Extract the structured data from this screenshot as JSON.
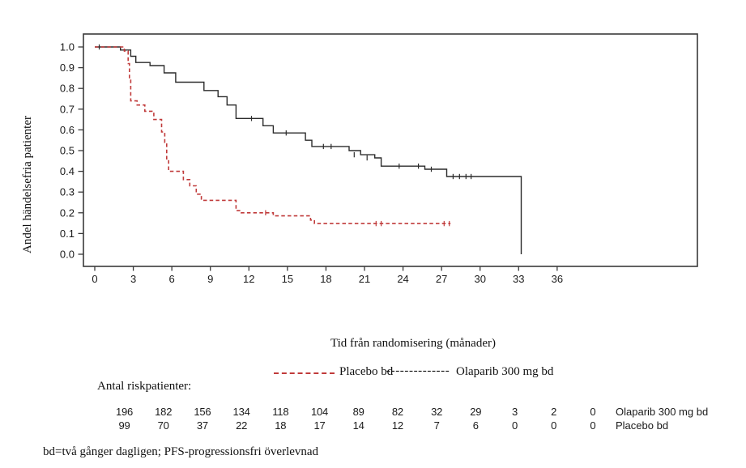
{
  "chart_data": {
    "type": "line",
    "subtype": "kaplan-meier-step",
    "xlabel": "Tid från randomisering (månader)",
    "ylabel": "Andel händelsefria patienter",
    "x_ticks": [
      0,
      3,
      6,
      9,
      12,
      15,
      18,
      21,
      24,
      27,
      30,
      33,
      36
    ],
    "y_ticks": [
      "0.0",
      "0.1",
      "0.2",
      "0.3",
      "0.4",
      "0.5",
      "0.6",
      "0.7",
      "0.8",
      "0.9",
      "1.0"
    ],
    "xlim": [
      0,
      47
    ],
    "ylim": [
      0,
      1
    ],
    "grid": false,
    "legend_position": "below",
    "series": [
      {
        "name": "Olaparib 300 mg bd",
        "color": "#2b2b2b",
        "style": "solid",
        "steps": [
          [
            0,
            1.0
          ],
          [
            2.0,
            0.985
          ],
          [
            2.8,
            0.955
          ],
          [
            3.2,
            0.925
          ],
          [
            4.3,
            0.91
          ],
          [
            5.4,
            0.875
          ],
          [
            6.3,
            0.83
          ],
          [
            8.5,
            0.79
          ],
          [
            9.6,
            0.76
          ],
          [
            10.3,
            0.72
          ],
          [
            11.0,
            0.655
          ],
          [
            13.1,
            0.62
          ],
          [
            13.9,
            0.585
          ],
          [
            16.4,
            0.55
          ],
          [
            16.9,
            0.52
          ],
          [
            19.8,
            0.5
          ],
          [
            20.7,
            0.48
          ],
          [
            21.8,
            0.465
          ],
          [
            22.3,
            0.425
          ],
          [
            25.7,
            0.41
          ],
          [
            27.4,
            0.375
          ],
          [
            33.2,
            0.0
          ]
        ],
        "end_time": 33.2,
        "censors": [
          [
            0.35,
            1.0
          ],
          [
            12.2,
            0.655
          ],
          [
            14.9,
            0.585
          ],
          [
            17.8,
            0.52
          ],
          [
            18.4,
            0.52
          ],
          [
            20.2,
            0.48
          ],
          [
            21.2,
            0.465
          ],
          [
            23.7,
            0.425
          ],
          [
            25.2,
            0.425
          ],
          [
            26.2,
            0.41
          ],
          [
            27.9,
            0.375
          ],
          [
            28.4,
            0.375
          ],
          [
            28.9,
            0.375
          ],
          [
            29.3,
            0.375
          ]
        ]
      },
      {
        "name": "Placebo bd",
        "color": "#c03a3a",
        "style": "dashed",
        "steps": [
          [
            0,
            1.0
          ],
          [
            2.3,
            0.98
          ],
          [
            2.6,
            0.92
          ],
          [
            2.7,
            0.84
          ],
          [
            2.8,
            0.74
          ],
          [
            3.3,
            0.72
          ],
          [
            3.9,
            0.69
          ],
          [
            4.6,
            0.65
          ],
          [
            5.2,
            0.59
          ],
          [
            5.45,
            0.54
          ],
          [
            5.6,
            0.46
          ],
          [
            5.75,
            0.4
          ],
          [
            6.9,
            0.36
          ],
          [
            7.4,
            0.33
          ],
          [
            7.9,
            0.29
          ],
          [
            8.3,
            0.26
          ],
          [
            11.0,
            0.21
          ],
          [
            11.4,
            0.2
          ],
          [
            13.9,
            0.185
          ],
          [
            16.8,
            0.165
          ],
          [
            17.1,
            0.148
          ]
        ],
        "end_time": 27.7,
        "censors": [
          [
            13.3,
            0.2
          ],
          [
            21.9,
            0.148
          ],
          [
            22.3,
            0.148
          ],
          [
            27.2,
            0.148
          ],
          [
            27.6,
            0.148
          ]
        ]
      }
    ]
  },
  "legend": {
    "placebo_label": "Placebo bd",
    "olaparib_dashes": "--------------",
    "olaparib_label": "Olaparib 300 mg bd"
  },
  "risk_table": {
    "heading": "Antal riskpatienter:",
    "rows": [
      {
        "label": "Olaparib 300 mg bd",
        "values": [
          "196",
          "182",
          "156",
          "134",
          "118",
          "104",
          "89",
          "82",
          "32",
          "29",
          "3",
          "2",
          "0"
        ]
      },
      {
        "label": "Placebo bd",
        "values": [
          "99",
          "70",
          "37",
          "22",
          "18",
          "17",
          "14",
          "12",
          "7",
          "6",
          "0",
          "0",
          "0"
        ]
      }
    ]
  },
  "footnote": "bd=två gånger dagligen; PFS-progressionsfri överlevnad"
}
